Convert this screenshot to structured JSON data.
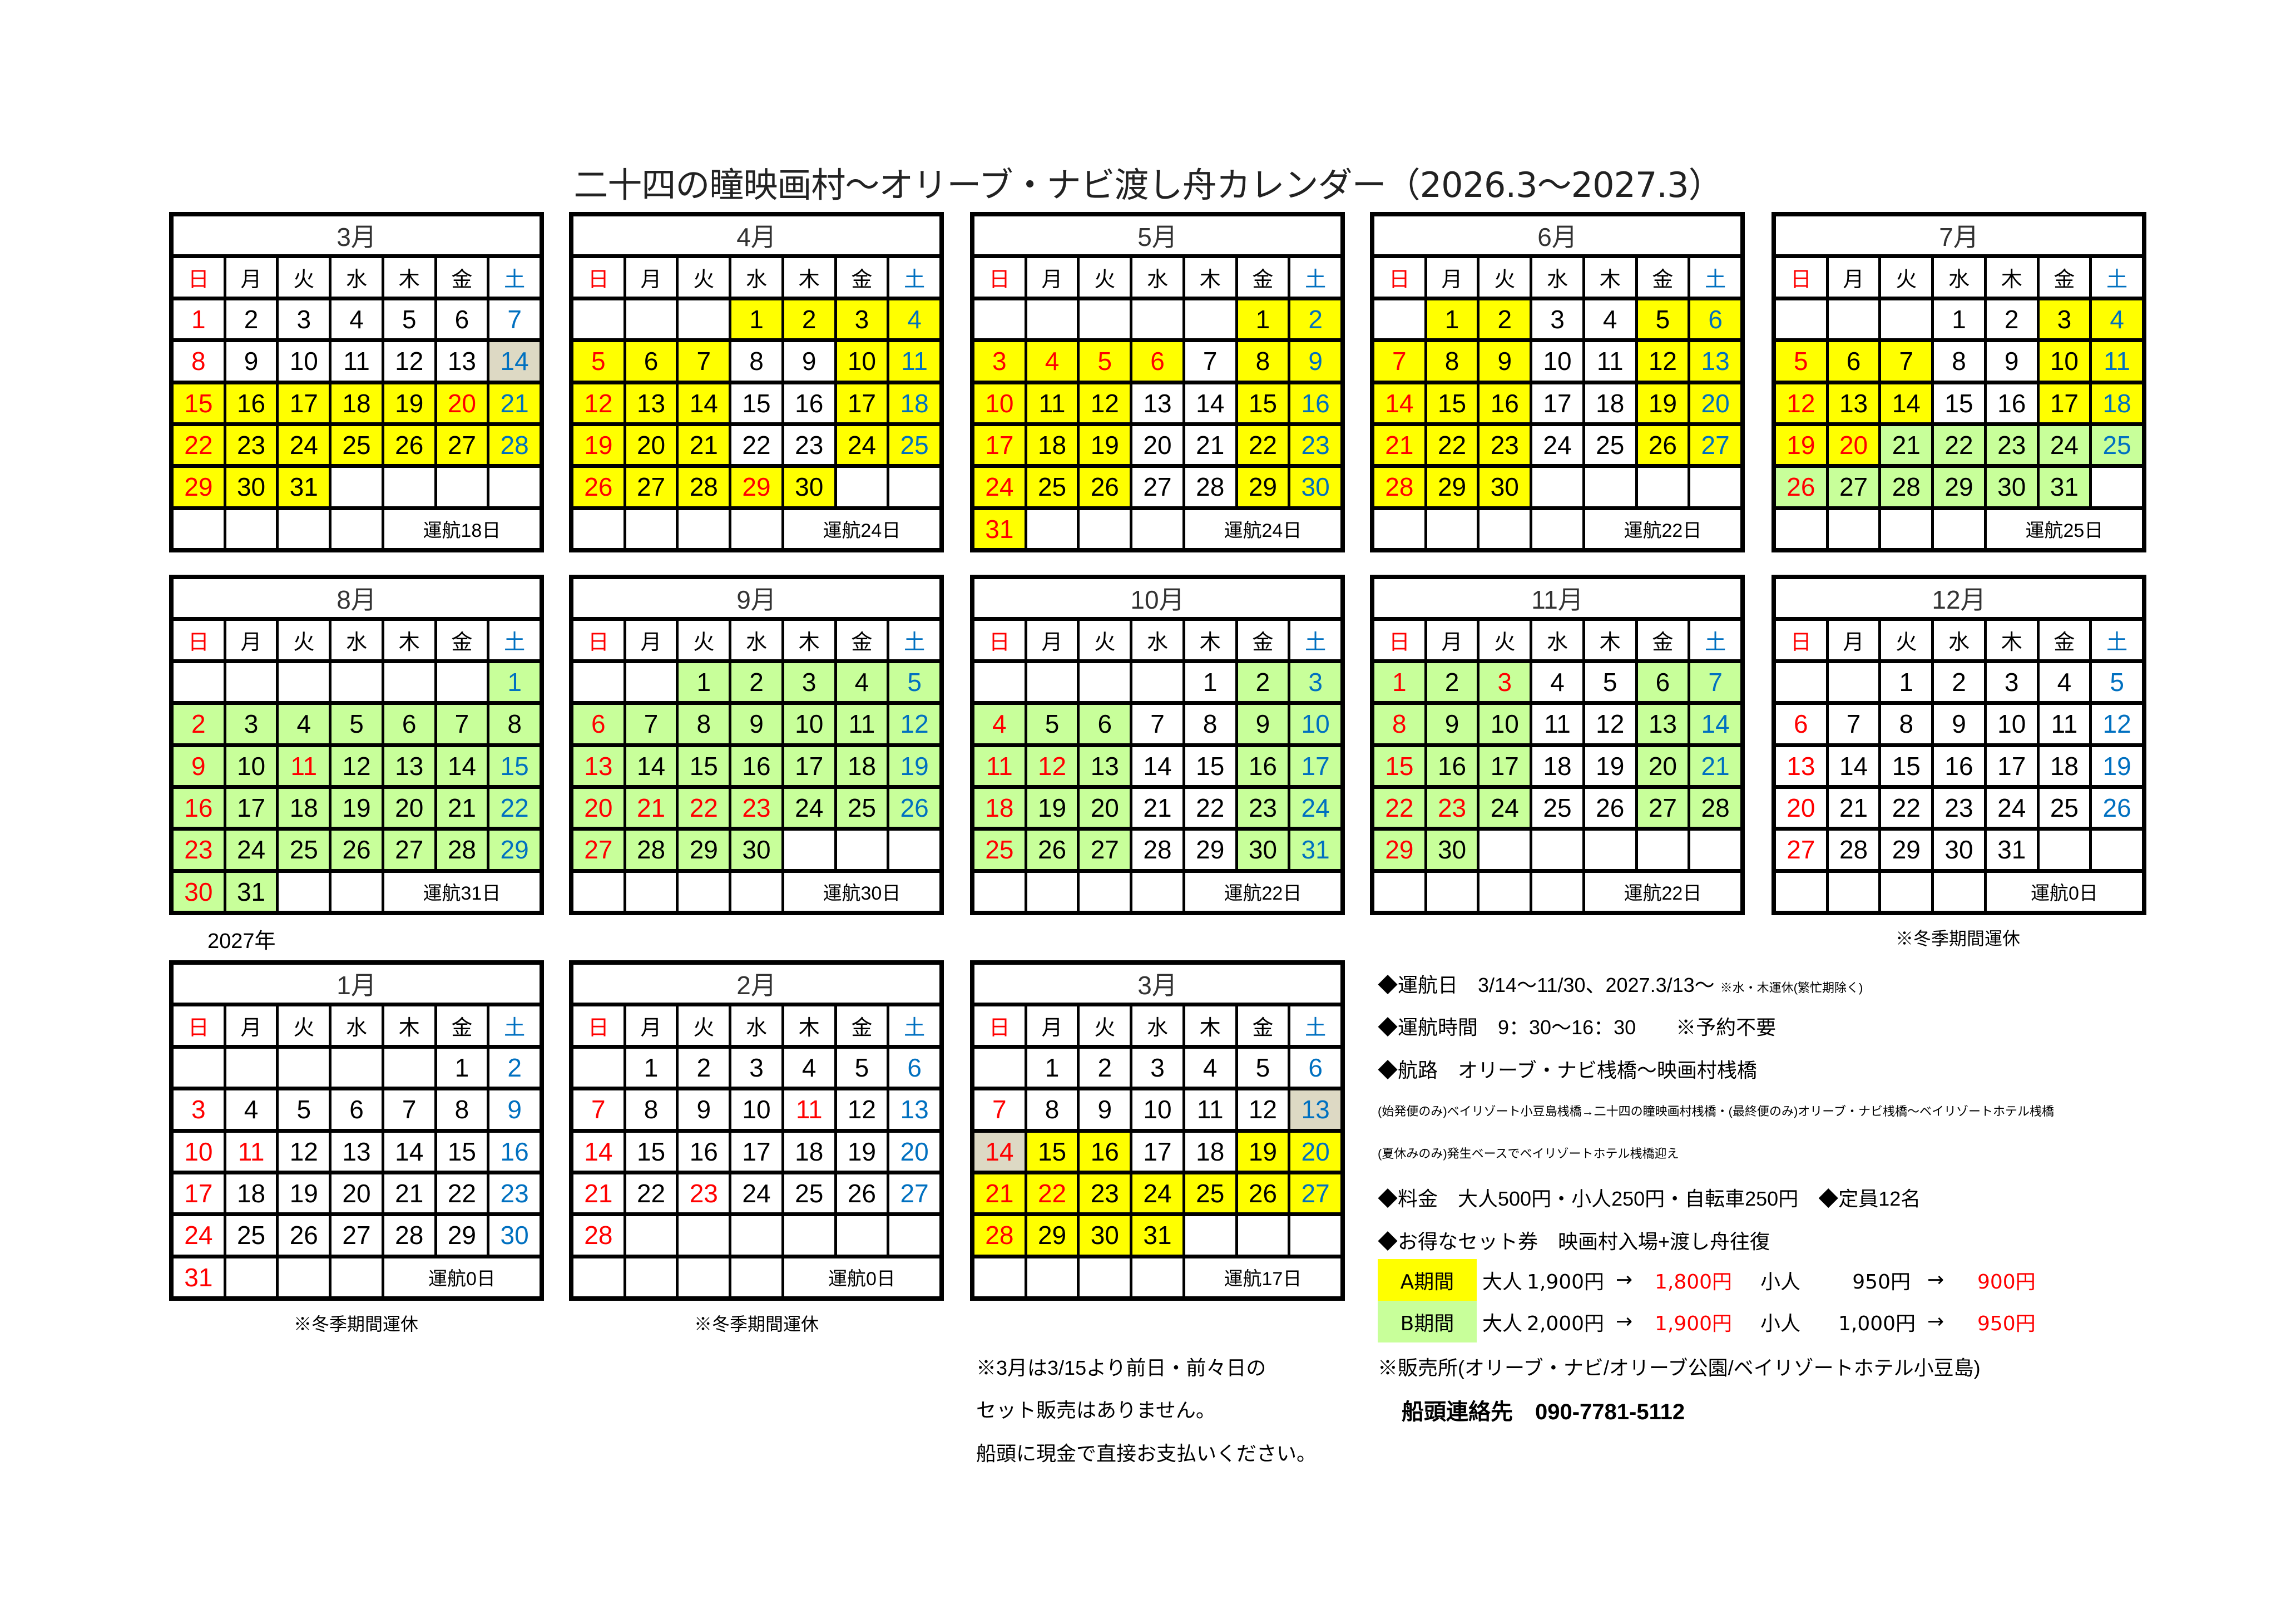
{
  "title": "二十四の瞳映画村〜オリーブ・ナビ渡し舟カレンダー（2026.3〜2027.3）",
  "weekdays": [
    "日",
    "月",
    "火",
    "水",
    "木",
    "金",
    "土"
  ],
  "colors": {
    "yellow": "#ffff00",
    "green": "#c8ff9a",
    "gray": "#ddd9c4",
    "sunday_holiday": "#ff0000",
    "saturday": "#0070c0"
  },
  "months": [
    {
      "title": "3月",
      "start": 0,
      "days": 31,
      "yellow": [
        15,
        16,
        17,
        18,
        19,
        20,
        21,
        22,
        23,
        24,
        25,
        26,
        27,
        28,
        29,
        30,
        31
      ],
      "green": [],
      "gray": [
        14
      ],
      "holidays": [
        20
      ],
      "plain": [],
      "total": "運航18日"
    },
    {
      "title": "4月",
      "start": 3,
      "days": 30,
      "yellow": [
        1,
        2,
        3,
        4,
        5,
        6,
        7,
        10,
        11,
        12,
        13,
        14,
        17,
        18,
        19,
        20,
        21,
        24,
        25,
        26,
        27,
        28,
        29,
        30
      ],
      "green": [],
      "gray": [],
      "holidays": [
        29
      ],
      "plain": [],
      "total": "運航24日"
    },
    {
      "title": "5月",
      "start": 5,
      "days": 31,
      "yellow": [
        1,
        2,
        3,
        4,
        5,
        6,
        8,
        9,
        10,
        11,
        12,
        15,
        16,
        17,
        18,
        19,
        22,
        23,
        24,
        25,
        26,
        29,
        30,
        31
      ],
      "green": [],
      "gray": [],
      "holidays": [
        4,
        5,
        6
      ],
      "plain": [],
      "total": "運航24日"
    },
    {
      "title": "6月",
      "start": 1,
      "days": 30,
      "yellow": [
        1,
        2,
        5,
        6,
        7,
        8,
        9,
        12,
        13,
        14,
        15,
        16,
        19,
        20,
        21,
        22,
        23,
        26,
        27,
        28,
        29,
        30
      ],
      "green": [],
      "gray": [],
      "holidays": [],
      "plain": [],
      "total": "運航22日"
    },
    {
      "title": "7月",
      "start": 3,
      "days": 31,
      "yellow": [
        3,
        4,
        5,
        6,
        7,
        10,
        11,
        12,
        13,
        14,
        17,
        18,
        19,
        20
      ],
      "green": [
        21,
        22,
        23,
        24,
        25,
        26,
        27,
        28,
        29,
        30,
        31
      ],
      "gray": [],
      "holidays": [
        20
      ],
      "plain": [],
      "total": "運航25日"
    },
    {
      "title": "8月",
      "start": 6,
      "days": 31,
      "yellow": [],
      "green": [
        1,
        2,
        3,
        4,
        5,
        6,
        7,
        8,
        9,
        10,
        11,
        12,
        13,
        14,
        15,
        16,
        17,
        18,
        19,
        20,
        21,
        22,
        23,
        24,
        25,
        26,
        27,
        28,
        29,
        30,
        31
      ],
      "gray": [],
      "holidays": [
        11
      ],
      "plain": [
        8
      ],
      "total": "運航31日"
    },
    {
      "title": "9月",
      "start": 2,
      "days": 30,
      "yellow": [],
      "green": [
        1,
        2,
        3,
        4,
        5,
        6,
        7,
        8,
        9,
        10,
        11,
        12,
        13,
        14,
        15,
        16,
        17,
        18,
        19,
        20,
        21,
        22,
        23,
        24,
        25,
        26,
        27,
        28,
        29,
        30
      ],
      "gray": [],
      "holidays": [
        21,
        22,
        23
      ],
      "plain": [],
      "total": "運航30日"
    },
    {
      "title": "10月",
      "start": 4,
      "days": 31,
      "yellow": [],
      "green": [
        2,
        3,
        4,
        5,
        6,
        9,
        10,
        11,
        12,
        13,
        16,
        17,
        18,
        19,
        20,
        23,
        24,
        25,
        26,
        27,
        30,
        31
      ],
      "gray": [],
      "holidays": [
        12
      ],
      "plain": [],
      "total": "運航22日"
    },
    {
      "title": "11月",
      "start": 0,
      "days": 30,
      "yellow": [],
      "green": [
        1,
        2,
        3,
        6,
        7,
        8,
        9,
        10,
        13,
        14,
        15,
        16,
        17,
        20,
        21,
        22,
        23,
        24,
        27,
        28,
        29,
        30
      ],
      "gray": [],
      "holidays": [
        3,
        23
      ],
      "plain": [
        28
      ],
      "total": "運航22日"
    },
    {
      "title": "12月",
      "start": 2,
      "days": 31,
      "yellow": [],
      "green": [],
      "gray": [],
      "holidays": [],
      "plain": [],
      "total": "運航0日"
    },
    {
      "title": "1月",
      "start": 5,
      "days": 31,
      "yellow": [],
      "green": [],
      "gray": [],
      "holidays": [
        11
      ],
      "plain": [],
      "total": "運航0日"
    },
    {
      "title": "2月",
      "start": 1,
      "days": 28,
      "yellow": [],
      "green": [],
      "gray": [],
      "holidays": [
        11,
        23
      ],
      "plain": [],
      "total": "運航0日"
    },
    {
      "title": "3月",
      "start": 1,
      "days": 31,
      "yellow": [
        15,
        16,
        19,
        20,
        21,
        22,
        23,
        24,
        25,
        26,
        27,
        28,
        29,
        30,
        31
      ],
      "green": [],
      "gray": [
        13,
        14
      ],
      "holidays": [
        22
      ],
      "plain": [],
      "total": "運航17日"
    }
  ],
  "year_label": "2027年",
  "winter_note": "※冬季期間運休",
  "info": {
    "days": "◆運航日　3/14〜11/30、2027.3/13〜",
    "days_note": "※水・木運休(繁忙期除く)",
    "hours": "◆運航時間　9：30〜16：30　　※予約不要",
    "route": "◆航路　オリーブ・ナビ桟橋〜映画村桟橋",
    "route_note1": "(始発便のみ)ベイリゾート小豆島桟橋→二十四の瞳映画村桟橋・(最終便のみ)オリーブ・ナビ桟橋〜ベイリゾートホテル桟橋",
    "route_note2": "(夏休みのみ)発生ベースでベイリゾートホテル桟橋迎え",
    "fare": "◆料金　大人500円・小人250円・自転車250円　◆定員12名",
    "set": "◆お得なセット券　映画村入場+渡し舟往復",
    "periods": [
      {
        "name": "A期間",
        "adult_label": "大人",
        "adult_from": "1,900円",
        "adult_to": "1,800円",
        "child_label": "小人",
        "child_from": "950円",
        "child_to": "900円",
        "arrow": "→"
      },
      {
        "name": "B期間",
        "adult_label": "大人",
        "adult_from": "2,000円",
        "adult_to": "1,900円",
        "child_label": "小人",
        "child_from": "1,000円",
        "child_to": "950円",
        "arrow": "→"
      }
    ],
    "sales": "※販売所(オリーブ・ナビ/オリーブ公園/ベイリゾートホテル小豆島)",
    "contact": "船頭連絡先　090-7781-5112"
  },
  "march_note": [
    "※3月は3/15より前日・前々日の",
    "セット販売はありません。",
    "船頭に現金で直接お支払いください。"
  ]
}
